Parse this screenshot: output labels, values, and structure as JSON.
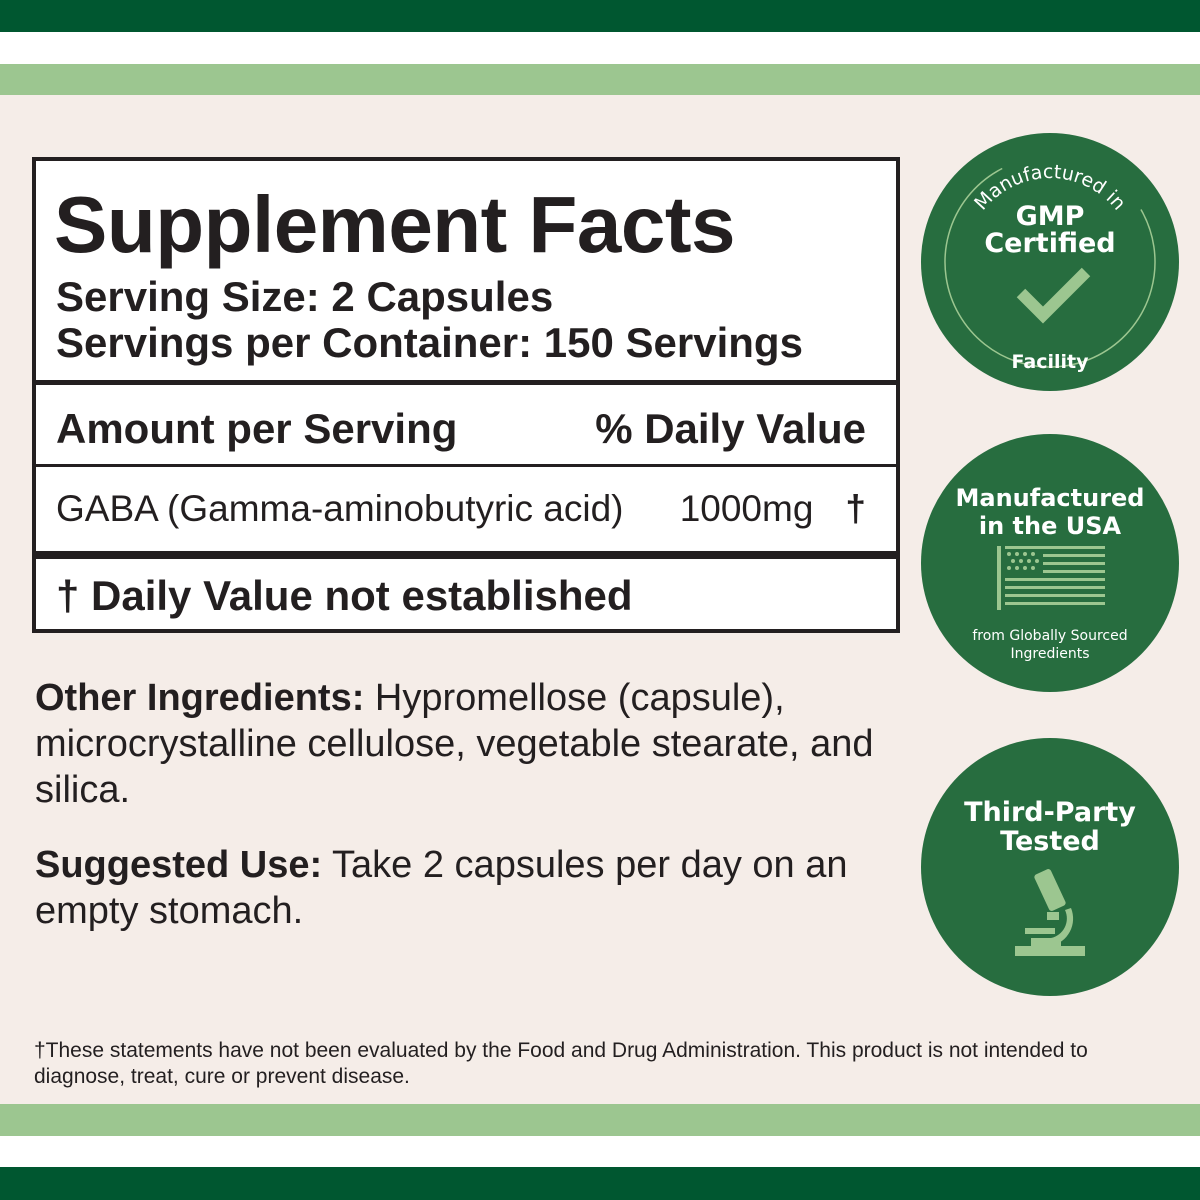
{
  "colors": {
    "dark_green": "#005730",
    "light_green": "#9cc690",
    "badge_green": "#276d3f",
    "background": "#f5ede8"
  },
  "facts": {
    "title": "Supplement Facts",
    "serving_size": "Serving Size: 2 Capsules",
    "servings_per_container": "Servings per Container: 150 Servings",
    "amount_header": "Amount per Serving",
    "dv_header": "% Daily Value",
    "ingredient": {
      "name": "GABA (Gamma-aminobutyric acid)",
      "amount": "1000mg",
      "dv": "†"
    },
    "footnote": "† Daily Value not established"
  },
  "other_ingredients": {
    "label": "Other Ingredients:",
    "text": " Hypromellose (capsule), microcrystalline cellulose, vegetable stearate, and silica."
  },
  "suggested_use": {
    "label": "Suggested Use:",
    "text": " Take 2 capsules per day on an empty stomach."
  },
  "disclaimer": "†These statements have not been evaluated by the Food and Drug Administration. This product is not intended to diagnose, treat, cure or prevent disease.",
  "badges": {
    "gmp": {
      "top": "Manufactured in",
      "title1": "GMP",
      "title2": "Certified",
      "bottom": "Facility",
      "icon": "checkmark-icon"
    },
    "usa": {
      "title1": "Manufactured",
      "title2": "in the USA",
      "sub1": "from Globally Sourced",
      "sub2": "Ingredients",
      "icon": "us-flag-icon"
    },
    "tested": {
      "title1": "Third-Party",
      "title2": "Tested",
      "icon": "microscope-icon"
    }
  }
}
